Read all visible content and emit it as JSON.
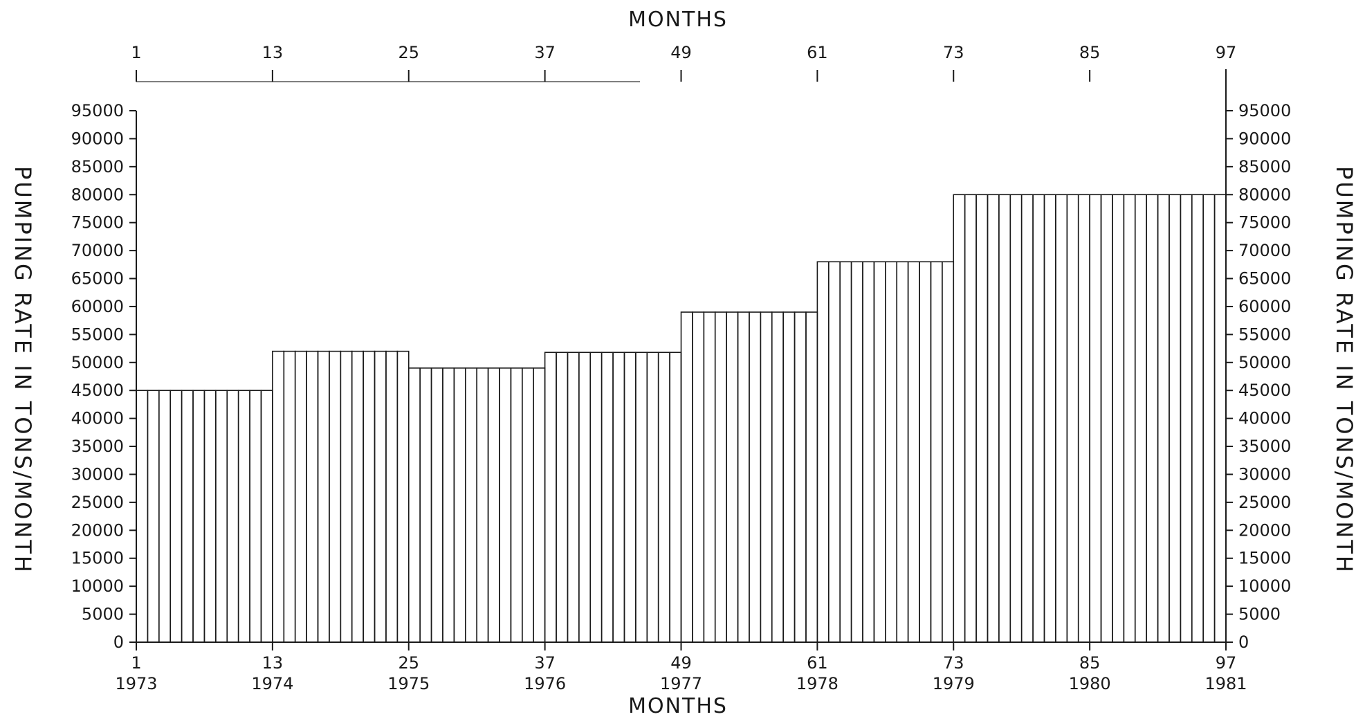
{
  "chart_data": {
    "type": "bar",
    "title": "",
    "xlabel_top": "MONTHS",
    "xlabel_bottom": "MONTHS",
    "ylabel_left": "PUMPING RATE IN TONS/MONTH",
    "ylabel_right": "PUMPING RATE IN TONS/MONTH",
    "xlim": [
      1,
      97
    ],
    "ylim": [
      0,
      95000
    ],
    "grid": false,
    "x_ticks_top": [
      "1",
      "13",
      "25",
      "37",
      "49",
      "61",
      "73",
      "85",
      "97"
    ],
    "x_ticks_bottom": [
      {
        "month": "1",
        "year": "1973"
      },
      {
        "month": "13",
        "year": "1974"
      },
      {
        "month": "25",
        "year": "1975"
      },
      {
        "month": "37",
        "year": "1976"
      },
      {
        "month": "49",
        "year": "1977"
      },
      {
        "month": "61",
        "year": "1978"
      },
      {
        "month": "73",
        "year": "1979"
      },
      {
        "month": "85",
        "year": "1980"
      },
      {
        "month": "97",
        "year": "1981"
      }
    ],
    "y_ticks": [
      "0",
      "5000",
      "10000",
      "15000",
      "20000",
      "25000",
      "30000",
      "35000",
      "40000",
      "45000",
      "50000",
      "55000",
      "60000",
      "65000",
      "70000",
      "75000",
      "80000",
      "85000",
      "90000",
      "95000"
    ],
    "series": [
      {
        "segments": [
          {
            "start_month": 1,
            "end_month": 13,
            "value": 45000
          },
          {
            "start_month": 13,
            "end_month": 25,
            "value": 52000
          },
          {
            "start_month": 25,
            "end_month": 37,
            "value": 49000
          },
          {
            "start_month": 37,
            "end_month": 49,
            "value": 51800
          },
          {
            "start_month": 49,
            "end_month": 61,
            "value": 59000
          },
          {
            "start_month": 61,
            "end_month": 73,
            "value": 68000
          },
          {
            "start_month": 73,
            "end_month": 97,
            "value": 80000
          }
        ]
      }
    ]
  }
}
